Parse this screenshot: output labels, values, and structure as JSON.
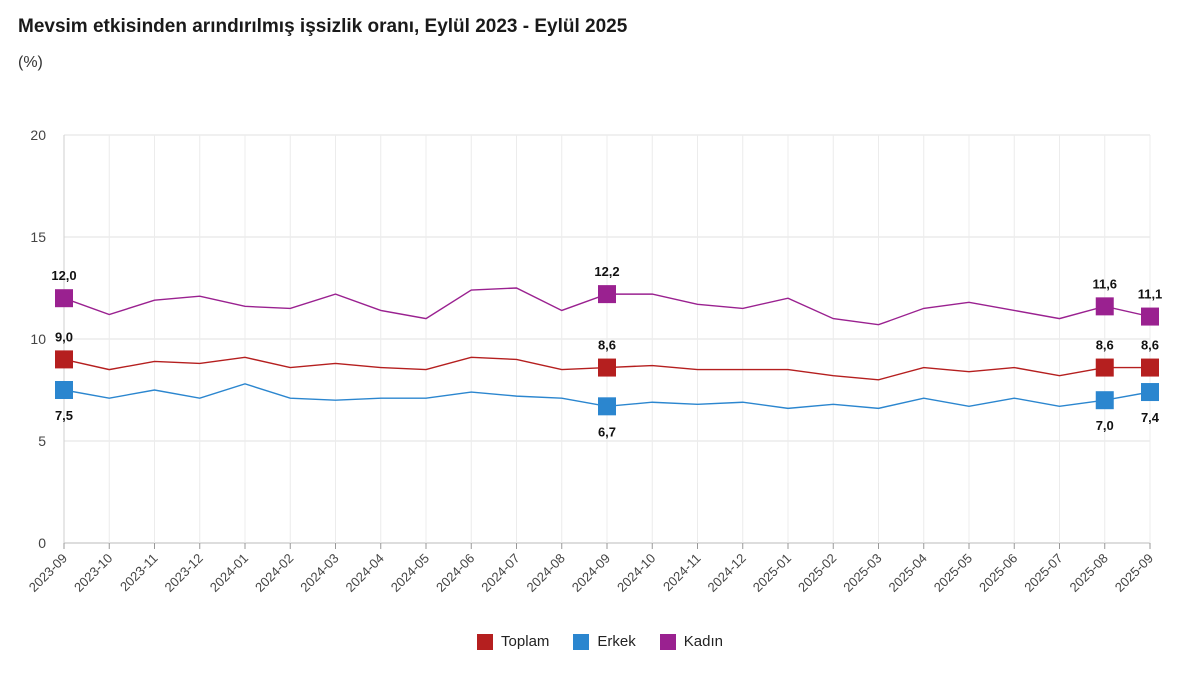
{
  "title": "Mevsim etkisinden arındırılmış işsizlik oranı, Eylül 2023 - Eylül 2025",
  "subtitle": "(%)",
  "chart_data": {
    "type": "line",
    "x": [
      "2023-09",
      "2023-10",
      "2023-11",
      "2023-12",
      "2024-01",
      "2024-02",
      "2024-03",
      "2024-04",
      "2024-05",
      "2024-06",
      "2024-07",
      "2024-08",
      "2024-09",
      "2024-10",
      "2024-11",
      "2024-12",
      "2025-01",
      "2025-02",
      "2025-03",
      "2025-04",
      "2025-05",
      "2025-06",
      "2025-07",
      "2025-08",
      "2025-09"
    ],
    "ylim": [
      0,
      20
    ],
    "yticks": [
      0,
      5,
      10,
      15,
      20
    ],
    "grid": true,
    "legend_position": "bottom",
    "series": [
      {
        "name": "Toplam",
        "color": "#b51f1f",
        "values": [
          9.0,
          8.5,
          8.9,
          8.8,
          9.1,
          8.6,
          8.8,
          8.6,
          8.5,
          9.1,
          9.0,
          8.5,
          8.6,
          8.7,
          8.5,
          8.5,
          8.5,
          8.2,
          8.0,
          8.6,
          8.4,
          8.6,
          8.2,
          8.6,
          8.6
        ],
        "labels": [
          {
            "index": 0,
            "text": "9,0"
          },
          {
            "index": 12,
            "text": "8,6"
          },
          {
            "index": 23,
            "text": "8,6"
          },
          {
            "index": 24,
            "text": "8,6"
          }
        ]
      },
      {
        "name": "Erkek",
        "color": "#2b86cf",
        "values": [
          7.5,
          7.1,
          7.5,
          7.1,
          7.8,
          7.1,
          7.0,
          7.1,
          7.1,
          7.4,
          7.2,
          7.1,
          6.7,
          6.9,
          6.8,
          6.9,
          6.6,
          6.8,
          6.6,
          7.1,
          6.7,
          7.1,
          6.7,
          7.0,
          7.4
        ],
        "labels": [
          {
            "index": 0,
            "text": "7,5"
          },
          {
            "index": 12,
            "text": "6,7"
          },
          {
            "index": 23,
            "text": "7,0"
          },
          {
            "index": 24,
            "text": "7,4"
          }
        ]
      },
      {
        "name": "Kadın",
        "color": "#9a2190",
        "values": [
          12.0,
          11.2,
          11.9,
          12.1,
          11.6,
          11.5,
          12.2,
          11.4,
          11.0,
          12.4,
          12.5,
          11.4,
          12.2,
          12.2,
          11.7,
          11.5,
          12.0,
          11.0,
          10.7,
          11.5,
          11.8,
          11.4,
          11.0,
          11.6,
          11.1
        ],
        "labels": [
          {
            "index": 0,
            "text": "12,0"
          },
          {
            "index": 12,
            "text": "12,2"
          },
          {
            "index": 23,
            "text": "11,6"
          },
          {
            "index": 24,
            "text": "11,1"
          }
        ]
      }
    ]
  }
}
